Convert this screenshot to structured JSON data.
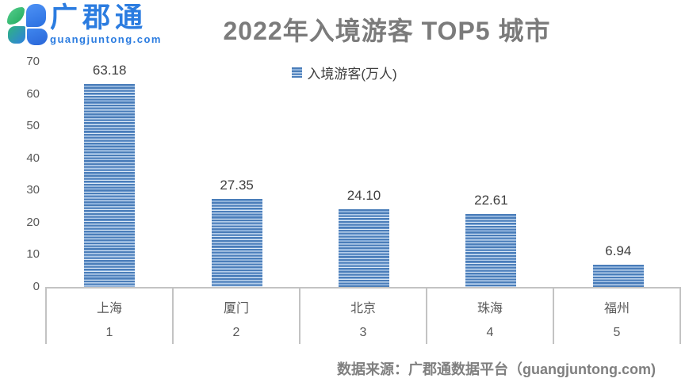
{
  "brand": {
    "name": "广郡通",
    "domain": "guangjuntong.com"
  },
  "footer": {
    "text": "数据来源：广郡通数据平台（guangjuntong.com)"
  },
  "colors": {
    "brand_blue": "#2b7ce0",
    "brand_green": "#2eb968",
    "bar_dark": "#4a7db9",
    "bar_light": "#dce9f6",
    "title_text": "#7b7b7b",
    "axis_text": "#595959",
    "table_border": "#c3c3c3"
  },
  "chart_data": {
    "type": "bar",
    "title": "2022年入境游客 TOP5 城市",
    "legend": "入境游客(万人)",
    "legend_position": "top-center",
    "categories": [
      "上海",
      "厦门",
      "北京",
      "珠海",
      "福州"
    ],
    "ranks": [
      "1",
      "2",
      "3",
      "4",
      "5"
    ],
    "values": [
      63.18,
      27.35,
      24.1,
      22.61,
      6.94
    ],
    "value_labels": [
      "63.18",
      "27.35",
      "24.10",
      "22.61",
      "6.94"
    ],
    "xlabel": "",
    "ylabel": "",
    "ylim": [
      0,
      70
    ],
    "yticks": [
      0,
      10,
      20,
      30,
      40,
      50,
      60,
      70
    ],
    "grid": false,
    "source": "广郡通数据平台 guangjuntong.com"
  }
}
